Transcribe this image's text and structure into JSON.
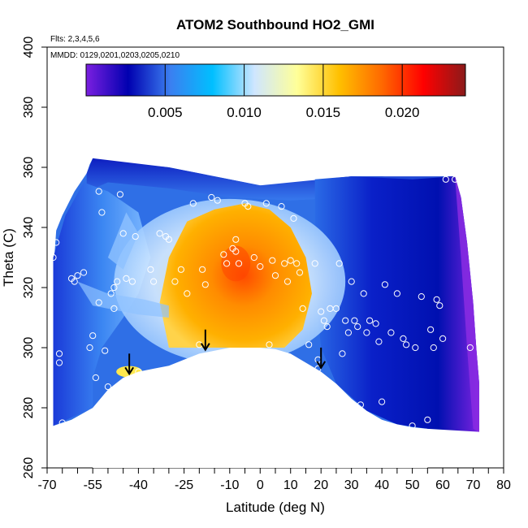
{
  "chart_data": {
    "type": "heatmap",
    "title": "ATOM2 Southbound HO2_GMI",
    "annotations": [
      "Flts: 2,3,4,5,6",
      "MMDD: 0129,0201,0203,0205,0210"
    ],
    "xlabel": "Latitude (deg N)",
    "ylabel": "Theta (C)",
    "xlim": [
      -70,
      80
    ],
    "ylim": [
      260,
      400
    ],
    "x_ticks_major": [
      -70,
      -55,
      -40,
      -25,
      -10,
      0,
      10,
      20,
      30,
      40,
      50,
      60,
      70,
      80
    ],
    "x_ticks_minor": [
      -65,
      -60,
      -50,
      -45,
      -35,
      -30,
      -20,
      -15,
      -5,
      5,
      15,
      25,
      35,
      45,
      55,
      65,
      75
    ],
    "y_ticks": [
      260,
      280,
      300,
      320,
      340,
      360,
      380,
      400
    ],
    "colorbar": {
      "range": [
        0,
        0.024
      ],
      "ticks": [
        "0.005",
        "0.010",
        "0.015",
        "0.020"
      ],
      "tick_values": [
        0.005,
        0.01,
        0.015,
        0.02
      ],
      "colors": [
        "#7b1fe0",
        "#0000b0",
        "#3b7ff0",
        "#00bfff",
        "#cfe6ff",
        "#ffff99",
        "#ffc000",
        "#ff6a00",
        "#ff0000",
        "#8b1a1a"
      ]
    },
    "field_colors": {
      "deep_blue": "#0010b8",
      "mid_blue": "#2f6fe6",
      "light_blue": "#8fc2ff",
      "pale": "#e6f2ff",
      "yellow": "#ffe84d",
      "orange": "#ffb000",
      "dark_orange": "#ff7a00",
      "red_orange": "#ff4500",
      "purple": "#8a2be2"
    },
    "arrows_lat": [
      -43,
      -18,
      20
    ],
    "arrows_theta": [
      291,
      299,
      293
    ],
    "terrain_profile": [
      [
        -55,
        280
      ],
      [
        -50,
        286
      ],
      [
        -45,
        290
      ],
      [
        -40,
        292
      ],
      [
        -35,
        293
      ],
      [
        -30,
        294
      ],
      [
        -25,
        296
      ],
      [
        -20,
        298
      ],
      [
        -15,
        299
      ],
      [
        -10,
        300
      ],
      [
        -5,
        300
      ],
      [
        0,
        300
      ],
      [
        5,
        299.5
      ],
      [
        10,
        298
      ],
      [
        15,
        295
      ],
      [
        20,
        292
      ],
      [
        25,
        288
      ],
      [
        30,
        283
      ],
      [
        35,
        279
      ],
      [
        40,
        276
      ],
      [
        45,
        274.5
      ],
      [
        50,
        273.5
      ],
      [
        55,
        273
      ]
    ],
    "sample_points": [
      [
        -68,
        330
      ],
      [
        -67,
        335
      ],
      [
        -66,
        298
      ],
      [
        -66,
        295
      ],
      [
        -65,
        275
      ],
      [
        -62,
        323
      ],
      [
        -61,
        322
      ],
      [
        -60,
        324
      ],
      [
        -58,
        325
      ],
      [
        -56,
        300
      ],
      [
        -55,
        304
      ],
      [
        -54,
        290
      ],
      [
        -53,
        315
      ],
      [
        -53,
        352
      ],
      [
        -52,
        345
      ],
      [
        -51,
        299
      ],
      [
        -50,
        287
      ],
      [
        -49,
        318
      ],
      [
        -48,
        320
      ],
      [
        -48,
        313
      ],
      [
        -47,
        322
      ],
      [
        -46,
        351
      ],
      [
        -45,
        338
      ],
      [
        -44,
        323
      ],
      [
        -42,
        322
      ],
      [
        -41,
        337
      ],
      [
        -40,
        292
      ],
      [
        -36,
        326
      ],
      [
        -35,
        322
      ],
      [
        -33,
        338
      ],
      [
        -31,
        337
      ],
      [
        -30,
        336
      ],
      [
        -28,
        322
      ],
      [
        -26,
        326
      ],
      [
        -24,
        318
      ],
      [
        -22,
        348
      ],
      [
        -20,
        301
      ],
      [
        -19,
        326
      ],
      [
        -18,
        321
      ],
      [
        -16,
        350
      ],
      [
        -14,
        349
      ],
      [
        -12,
        331
      ],
      [
        -11,
        328
      ],
      [
        -9,
        333
      ],
      [
        -8,
        332
      ],
      [
        -8,
        336
      ],
      [
        -7,
        328
      ],
      [
        -5,
        348
      ],
      [
        -4,
        347
      ],
      [
        -2,
        330
      ],
      [
        0,
        327
      ],
      [
        2,
        348
      ],
      [
        3,
        301
      ],
      [
        4,
        329
      ],
      [
        5,
        324
      ],
      [
        7,
        347
      ],
      [
        8,
        328
      ],
      [
        9,
        322
      ],
      [
        10,
        329
      ],
      [
        11,
        343
      ],
      [
        12,
        328
      ],
      [
        13,
        325
      ],
      [
        14,
        313
      ],
      [
        16,
        301
      ],
      [
        18,
        328
      ],
      [
        19,
        293
      ],
      [
        19,
        296
      ],
      [
        20,
        312
      ],
      [
        21,
        309
      ],
      [
        22,
        307
      ],
      [
        23,
        313
      ],
      [
        24,
        287
      ],
      [
        25,
        313
      ],
      [
        26,
        328
      ],
      [
        27,
        298
      ],
      [
        28,
        309
      ],
      [
        29,
        305
      ],
      [
        30,
        322
      ],
      [
        31,
        309
      ],
      [
        32,
        307
      ],
      [
        33,
        281
      ],
      [
        34,
        318
      ],
      [
        35,
        305
      ],
      [
        36,
        309
      ],
      [
        38,
        308
      ],
      [
        39,
        302
      ],
      [
        40,
        282
      ],
      [
        41,
        321
      ],
      [
        43,
        305
      ],
      [
        45,
        318
      ],
      [
        47,
        303
      ],
      [
        48,
        301
      ],
      [
        50,
        274
      ],
      [
        51,
        300
      ],
      [
        53,
        317
      ],
      [
        55,
        276
      ],
      [
        56,
        306
      ],
      [
        57,
        300
      ],
      [
        58,
        316
      ],
      [
        59,
        314
      ],
      [
        60,
        303
      ],
      [
        61,
        356
      ],
      [
        64,
        356
      ],
      [
        69,
        300
      ]
    ]
  }
}
